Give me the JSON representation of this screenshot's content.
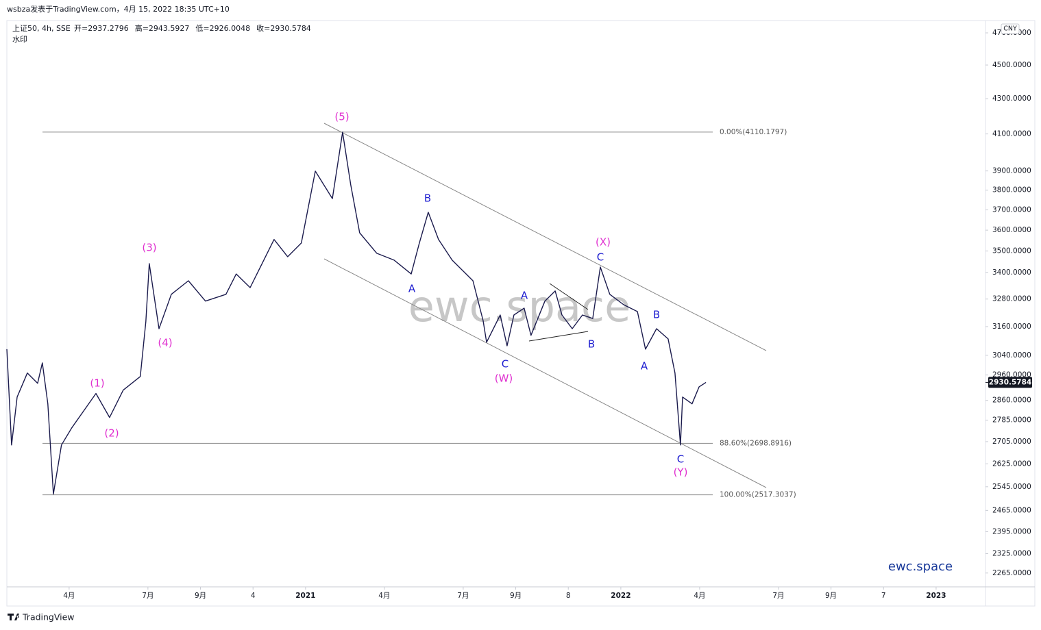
{
  "header": {
    "caption": "wsbza发表于TradingView.com，4月 15, 2022 18:35 UTC+10"
  },
  "chart_data": {
    "type": "line",
    "title": "上证50, 4h, SSE",
    "ohlc_labels": [
      "开=2937.2796",
      "高=2943.5927",
      "低=2926.0048",
      "收=2930.5784"
    ],
    "watermark_label": "水印",
    "currency": "CNY",
    "watermark": "ewc.space",
    "brand": "ewc.space",
    "footer": "TradingView",
    "log_scale": true,
    "color": "#1b1b4d",
    "x": [
      0.63,
      0.81,
      1.02,
      1.41,
      1.8,
      1.98,
      2.19,
      2.4,
      2.71,
      3.1,
      4.02,
      4.54,
      5.06,
      5.71,
      5.92,
      6.05,
      6.42,
      6.89,
      7.54,
      8.19,
      8.97,
      9.36,
      9.89,
      10.8,
      11.32,
      11.84,
      12.37,
      13.02,
      13.41,
      13.72,
      14.06,
      14.71,
      15.37,
      16.02,
      16.33,
      16.67,
      17.06,
      17.58,
      18.37,
      18.76,
      18.89,
      19.41,
      19.67,
      19.93,
      20.32,
      20.58,
      21.11,
      21.5,
      21.76,
      22.15,
      22.54,
      22.93,
      23.22,
      23.58,
      24.11,
      24.63,
      24.94,
      25.36,
      25.8,
      26.06,
      26.27,
      26.35,
      26.71,
      26.98,
      27.24
    ],
    "values": [
      3065,
      2693,
      2873,
      2968,
      2927,
      3009,
      2847,
      2520,
      2693,
      2756,
      2887,
      2795,
      2900,
      2954,
      3181,
      3441,
      3151,
      3301,
      3362,
      3271,
      3301,
      3393,
      3331,
      3555,
      3473,
      3538,
      3899,
      3757,
      4110,
      3827,
      3587,
      3489,
      3457,
      3393,
      3538,
      3688,
      3555,
      3457,
      3362,
      3185,
      3094,
      3210,
      3079,
      3210,
      3240,
      3123,
      3271,
      3316,
      3210,
      3151,
      3210,
      3195,
      3425,
      3301,
      3255,
      3225,
      3065,
      3151,
      3108,
      2968,
      2693,
      2873,
      2847,
      2913,
      2930.5784
    ],
    "last_price": 2930.5784,
    "xlim": [
      0.63,
      37.88
    ],
    "xticks": [
      {
        "value": 3,
        "label": "4月"
      },
      {
        "value": 6,
        "label": "7月"
      },
      {
        "value": 8,
        "label": "9月"
      },
      {
        "value": 10,
        "label": "4"
      },
      {
        "value": 12,
        "label": "2021"
      },
      {
        "value": 15,
        "label": "4月"
      },
      {
        "value": 18,
        "label": "7月"
      },
      {
        "value": 20,
        "label": "9月"
      },
      {
        "value": 22,
        "label": "8"
      },
      {
        "value": 24,
        "label": "2022"
      },
      {
        "value": 27,
        "label": "4月"
      },
      {
        "value": 30,
        "label": "7月"
      },
      {
        "value": 32,
        "label": "9月"
      },
      {
        "value": 34,
        "label": "7"
      },
      {
        "value": 36,
        "label": "2023"
      }
    ],
    "ylim": [
      2223,
      4779
    ],
    "yticks": [
      {
        "value": 4700,
        "label": "4700.0000"
      },
      {
        "value": 4500,
        "label": "4500.0000"
      },
      {
        "value": 4300,
        "label": "4300.0000"
      },
      {
        "value": 4100,
        "label": "4100.0000"
      },
      {
        "value": 3900,
        "label": "3900.0000"
      },
      {
        "value": 3800,
        "label": "3800.0000"
      },
      {
        "value": 3700,
        "label": "3700.0000"
      },
      {
        "value": 3600,
        "label": "3600.0000"
      },
      {
        "value": 3500,
        "label": "3500.0000"
      },
      {
        "value": 3400,
        "label": "3400.0000"
      },
      {
        "value": 3280,
        "label": "3280.0000"
      },
      {
        "value": 3160,
        "label": "3160.0000"
      },
      {
        "value": 3040,
        "label": "3040.0000"
      },
      {
        "value": 2960,
        "label": "2960.0000"
      },
      {
        "value": 2860,
        "label": "2860.0000"
      },
      {
        "value": 2785,
        "label": "2785.0000"
      },
      {
        "value": 2705,
        "label": "2705.0000"
      },
      {
        "value": 2625,
        "label": "2625.0000"
      },
      {
        "value": 2545,
        "label": "2545.0000"
      },
      {
        "value": 2465,
        "label": "2465.0000"
      },
      {
        "value": 2395,
        "label": "2395.0000"
      },
      {
        "value": 2325,
        "label": "2325.0000"
      },
      {
        "value": 2265,
        "label": "2265.0000"
      }
    ],
    "fib_levels": [
      {
        "value": 4110.1797,
        "label": "0.00%(4110.1797)"
      },
      {
        "value": 2698.8916,
        "label": "88.60%(2698.8916)"
      },
      {
        "value": 2517.3037,
        "label": "100.00%(2517.3037)"
      }
    ],
    "annotations": [
      {
        "text": "(5)",
        "color": "#e030d0"
      },
      {
        "text": "(3)",
        "color": "#e030d0"
      },
      {
        "text": "(4)",
        "color": "#e030d0"
      },
      {
        "text": "(1)",
        "color": "#e030d0"
      },
      {
        "text": "(2)",
        "color": "#e030d0"
      },
      {
        "text": "B",
        "color": "#1c1cd0"
      },
      {
        "text": "A",
        "color": "#1c1cd0"
      },
      {
        "text": "C",
        "color": "#1c1cd0"
      },
      {
        "text": "(W)",
        "color": "#e030d0"
      },
      {
        "text": "A",
        "color": "#1c1cd0"
      },
      {
        "text": "B",
        "color": "#1c1cd0"
      },
      {
        "text": "(X)",
        "color": "#e030d0"
      },
      {
        "text": "C",
        "color": "#1c1cd0"
      },
      {
        "text": "B",
        "color": "#1c1cd0"
      },
      {
        "text": "A",
        "color": "#1c1cd0"
      },
      {
        "text": "C",
        "color": "#1c1cd0"
      },
      {
        "text": "(Y)",
        "color": "#e030d0"
      }
    ]
  }
}
